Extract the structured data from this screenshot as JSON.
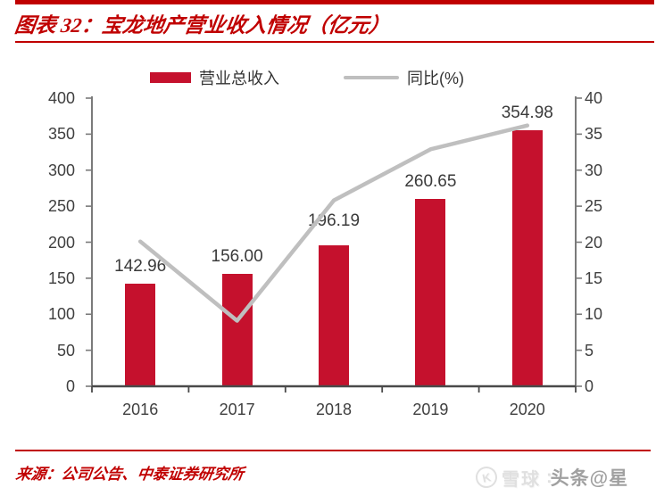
{
  "header": {
    "title": "图表 32：宝龙地产营业收入情况（亿元）",
    "accent_color": "#c00000"
  },
  "legend": {
    "items": [
      {
        "label": "营业总收入",
        "swatch": "bar",
        "color": "#c5112d"
      },
      {
        "label": "同比(%)",
        "swatch": "line",
        "color": "#bfbfbf"
      }
    ]
  },
  "chart_data": {
    "type": "bar",
    "title": "宝龙地产营业收入情况（亿元）",
    "categories": [
      "2016",
      "2017",
      "2018",
      "2019",
      "2020"
    ],
    "series": [
      {
        "name": "营业总收入",
        "type": "bar",
        "axis": "left",
        "values": [
          142.96,
          156.0,
          196.19,
          260.65,
          354.98
        ],
        "data_labels": [
          "142.96",
          "156.00",
          "196.19",
          "260.65",
          "354.98"
        ],
        "color": "#c5112d"
      },
      {
        "name": "同比(%)",
        "type": "line",
        "axis": "right",
        "values": [
          20.1,
          9.1,
          25.8,
          32.9,
          36.2
        ],
        "color": "#bfbfbf"
      }
    ],
    "left_axis": {
      "min": 0,
      "max": 400,
      "step": 50,
      "ticks": [
        "400",
        "350",
        "300",
        "250",
        "200",
        "150",
        "100",
        "50",
        "0"
      ]
    },
    "right_axis": {
      "min": 0,
      "max": 40,
      "step": 5,
      "ticks": [
        "40",
        "35",
        "30",
        "25",
        "20",
        "15",
        "10",
        "5",
        "0"
      ]
    },
    "grid": false,
    "legend_position": "top",
    "label_dy": [
      0,
      0,
      8,
      0,
      0
    ],
    "axis_color": "#7a7a7a",
    "baseline_color": "#4a4a4a"
  },
  "footer": {
    "source": "来源：公司公告、中泰证券研究所",
    "watermarks": {
      "xueqiu_logo": "K",
      "xueqiu": "雪球",
      "separator": ":",
      "toutiao": "头条@星"
    }
  }
}
